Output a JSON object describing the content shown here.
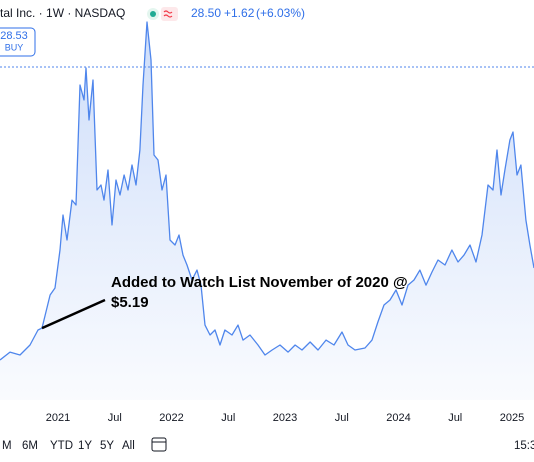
{
  "header": {
    "symbol": "tal Inc. · 1W · NASDAQ",
    "price": "28.50",
    "change": "+1.62",
    "change_pct": "(+6.03%)"
  },
  "badge": {
    "price": "28.53",
    "action": "BUY"
  },
  "toolbar": {
    "ranges": [
      "M",
      "6M",
      "YTD",
      "1Y",
      "5Y",
      "All"
    ],
    "time": "15:3"
  },
  "chart_data": {
    "type": "area",
    "color": "#4f86ec",
    "annotation": {
      "lines": [
        "Added to Watch List November of 2020 @",
        "$5.19"
      ],
      "x": 2020.859,
      "y": 5.19
    },
    "x": [
      2020.489,
      2020.577,
      2020.665,
      2020.753,
      2020.824,
      2020.859,
      2020.93,
      2020.974,
      2021.018,
      2021.044,
      2021.079,
      2021.123,
      2021.159,
      2021.194,
      2021.229,
      2021.247,
      2021.273,
      2021.308,
      2021.344,
      2021.379,
      2021.405,
      2021.441,
      2021.476,
      2021.511,
      2021.546,
      2021.582,
      2021.617,
      2021.652,
      2021.687,
      2021.722,
      2021.749,
      2021.784,
      2021.819,
      2021.846,
      2021.881,
      2021.916,
      2021.952,
      2021.987,
      2022.031,
      2022.066,
      2022.101,
      2022.137,
      2022.181,
      2022.225,
      2022.26,
      2022.295,
      2022.339,
      2022.383,
      2022.427,
      2022.471,
      2022.533,
      2022.586,
      2022.63,
      2022.692,
      2022.762,
      2022.824,
      2022.886,
      2022.956,
      2023.027,
      2023.089,
      2023.15,
      2023.221,
      2023.291,
      2023.361,
      2023.432,
      2023.502,
      2023.555,
      2023.617,
      2023.705,
      2023.767,
      2023.819,
      2023.872,
      2023.925,
      2023.978,
      2024.031,
      2024.084,
      2024.137,
      2024.189,
      2024.242,
      2024.295,
      2024.348,
      2024.41,
      2024.471,
      2024.524,
      2024.577,
      2024.63,
      2024.683,
      2024.736,
      2024.789,
      2024.833,
      2024.868,
      2024.903,
      2024.938,
      2024.982,
      2025.009,
      2025.044,
      2025.079,
      2025.123,
      2025.158,
      2025.194
    ],
    "values": [
      2.34,
      3.05,
      2.79,
      3.68,
      5.02,
      5.19,
      8.14,
      8.77,
      12.16,
      15.29,
      13.05,
      16.62,
      16.18,
      26.89,
      25.55,
      28.41,
      23.77,
      27.34,
      17.52,
      17.96,
      16.62,
      19.3,
      14.39,
      18.41,
      17.07,
      18.86,
      17.52,
      19.75,
      17.96,
      21.09,
      26.89,
      32.52,
      29.13,
      20.64,
      20.2,
      17.52,
      18.86,
      13.05,
      12.61,
      13.5,
      11.71,
      10.82,
      9.48,
      10.37,
      9.03,
      5.46,
      4.57,
      5.02,
      3.68,
      5.02,
      4.57,
      5.46,
      4.12,
      4.57,
      3.68,
      2.79,
      3.23,
      3.68,
      3.05,
      3.68,
      3.23,
      3.95,
      3.23,
      4.12,
      3.68,
      4.84,
      3.68,
      3.23,
      3.41,
      4.12,
      5.73,
      7.25,
      7.7,
      8.59,
      7.25,
      9.03,
      9.48,
      10.37,
      9.03,
      10.2,
      11.27,
      10.82,
      12.16,
      11.09,
      11.71,
      12.61,
      11.09,
      13.5,
      17.96,
      17.52,
      21.09,
      17.07,
      19.3,
      21.98,
      22.7,
      18.86,
      19.75,
      14.84,
      12.61,
      10.55
    ],
    "xlim": [
      2020.489,
      2025.194
    ],
    "ylim": [
      -1.23,
      34.48
    ],
    "xticks": [
      2021,
      {
        "value": 2021.5,
        "label": "Jul"
      },
      2022,
      {
        "value": 2022.5,
        "label": "Jul"
      },
      2023,
      {
        "value": 2023.5,
        "label": "Jul"
      },
      2024,
      {
        "value": 2024.5,
        "label": "Jul"
      },
      2025
    ]
  }
}
